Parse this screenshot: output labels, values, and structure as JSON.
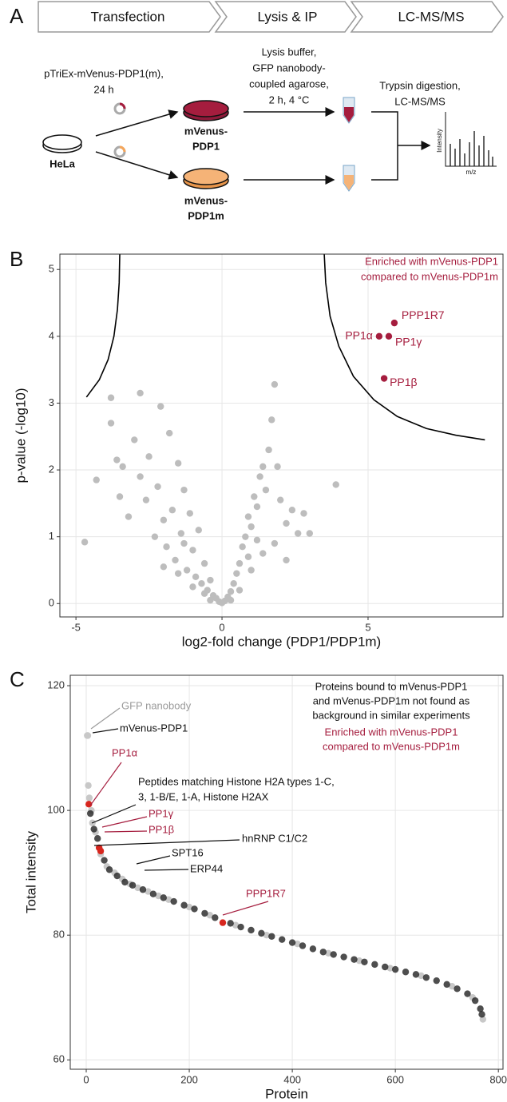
{
  "panel_labels": [
    "A",
    "B",
    "C"
  ],
  "workflow": {
    "steps": [
      "Transfection",
      "Lysis & IP",
      "LC-MS/MS"
    ],
    "transfection_note": [
      "pTriEx-mVenus-PDP1(m),",
      "24 h"
    ],
    "lysis_note": [
      "Lysis buffer,",
      "GFP nanobody-",
      "coupled agarose,",
      "2 h, 4 °C"
    ],
    "ms_note": [
      "Trypsin digestion,",
      "LC-MS/MS"
    ],
    "cell_line": "HeLa",
    "conditions": [
      [
        "mVenus-",
        "PDP1"
      ],
      [
        "mVenus-",
        "PDP1m"
      ]
    ],
    "spectrum": {
      "y_label": "Intensity",
      "x_label": "m/z"
    }
  },
  "chart_data": [
    {
      "type": "scatter",
      "x_label": "log2-fold change (PDP1/PDP1m)",
      "y_label": "p-value (-log10)",
      "xlim": [
        -5.55,
        9.62
      ],
      "ylim": [
        -0.2,
        5.23
      ],
      "xticks": [
        -5,
        0,
        5
      ],
      "yticks": [
        0,
        1,
        2,
        3,
        4,
        5
      ],
      "grid": true,
      "annotation": {
        "lines": [
          "Enriched with mVenus-PDP1",
          "compared to mVenus-PDP1m"
        ],
        "color": "#a51d3e"
      },
      "series": [
        {
          "color": "#bdbdbd",
          "x": [
            -4.7,
            -4.3,
            -3.8,
            -3.8,
            -3.6,
            -3.5,
            -3.4,
            -3.2,
            -3.0,
            -2.8,
            -2.8,
            -2.6,
            -2.5,
            -2.3,
            -2.2,
            -2.1,
            -2.0,
            -1.9,
            -1.8,
            -1.7,
            -1.6,
            -1.5,
            -1.4,
            -1.3,
            -1.2,
            -1.1,
            -1.0,
            -0.9,
            -0.8,
            -0.7,
            -0.6,
            -0.5,
            -0.4,
            -0.3,
            -0.2,
            -0.1,
            0,
            0.1,
            0.2,
            0.3,
            0.4,
            0.5,
            0.6,
            0.7,
            0.8,
            0.9,
            1.0,
            1.1,
            1.2,
            1.3,
            1.4,
            1.5,
            1.6,
            1.7,
            1.8,
            1.9,
            2.0,
            2.2,
            2.4,
            2.6,
            2.8,
            3.0,
            3.9,
            -1.5,
            -1.0,
            -0.6,
            0.6,
            1.0,
            1.4,
            1.8,
            -2.0,
            -1.3,
            0.9,
            1.2,
            2.2,
            -0.4,
            0.3
          ],
          "values": [
            0.92,
            1.85,
            3.08,
            2.7,
            2.15,
            1.6,
            2.05,
            1.3,
            2.45,
            3.15,
            1.9,
            1.55,
            2.2,
            1.0,
            1.75,
            2.95,
            1.25,
            0.85,
            2.55,
            1.4,
            0.65,
            2.1,
            1.05,
            1.7,
            0.5,
            1.35,
            0.8,
            0.4,
            1.1,
            0.3,
            0.6,
            0.2,
            0.35,
            0.12,
            0.08,
            0.03,
            0.01,
            0.04,
            0.1,
            0.18,
            0.3,
            0.45,
            0.6,
            0.85,
            1.0,
            1.3,
            1.15,
            1.6,
            1.45,
            1.9,
            2.05,
            1.7,
            2.3,
            2.75,
            3.28,
            2.05,
            1.55,
            1.2,
            1.4,
            1.05,
            1.35,
            1.05,
            1.78,
            0.45,
            0.25,
            0.15,
            0.2,
            0.5,
            0.75,
            0.9,
            0.55,
            0.9,
            0.7,
            0.95,
            0.65,
            0.05,
            0.05
          ]
        },
        {
          "color": "#a51d3e",
          "x": [
            5.9,
            5.38,
            5.71,
            5.55
          ],
          "values": [
            4.2,
            4.0,
            4.0,
            3.37
          ],
          "labels": [
            "PPP1R7",
            "PP1α",
            "PP1γ",
            "PP1β"
          ]
        }
      ],
      "threshold_curves": [
        {
          "color": "#000000",
          "x": [
            -4.64,
            -4.2,
            -3.9,
            -3.7,
            -3.58,
            -3.52,
            -3.5
          ],
          "y": [
            3.09,
            3.35,
            3.65,
            4.0,
            4.4,
            4.8,
            5.23
          ]
        },
        {
          "color": "#000000",
          "x": [
            3.5,
            3.55,
            3.7,
            4.0,
            4.5,
            5.2,
            6,
            7,
            8,
            9
          ],
          "y": [
            5.23,
            4.8,
            4.3,
            3.85,
            3.4,
            3.05,
            2.8,
            2.62,
            2.52,
            2.45
          ]
        }
      ]
    },
    {
      "type": "scatter",
      "x_label": "Protein",
      "y_label": "Total intensity",
      "xlim": [
        -31,
        809
      ],
      "ylim": [
        58.5,
        121.67
      ],
      "xticks": [
        0,
        200,
        400,
        600,
        800
      ],
      "yticks": [
        60,
        80,
        100,
        120
      ],
      "grid": true,
      "legend_text": {
        "bound": {
          "lines": [
            "Proteins bound to mVenus-PDP1",
            "and mVenus-PDP1m not found as",
            "background in similar experiments"
          ],
          "color": "#111111"
        },
        "enriched": {
          "lines": [
            "Enriched with mVenus-PDP1",
            "compared to mVenus-PDP1m"
          ],
          "color": "#a51d3e"
        }
      },
      "series": [
        {
          "color": "#c8c8c8",
          "x": [
            2,
            3,
            4,
            6,
            10,
            12,
            18,
            28,
            40,
            55,
            70,
            85,
            100,
            120,
            140,
            160,
            200,
            240,
            290,
            350,
            410,
            470,
            530,
            590,
            650,
            710,
            750,
            770
          ],
          "values": [
            112,
            112,
            104,
            102,
            100,
            98,
            96.5,
            93,
            91,
            90,
            89,
            88.2,
            87.6,
            87,
            86.3,
            85.7,
            84.5,
            83.2,
            81.6,
            80,
            78.6,
            77.1,
            75.9,
            74.7,
            73.5,
            71.8,
            70,
            66.5
          ]
        },
        {
          "color": "#222222",
          "x": [
            8,
            15,
            22,
            35,
            45,
            60,
            75,
            90,
            110,
            130,
            150,
            170,
            190,
            210,
            230,
            250,
            280,
            300,
            320,
            340,
            360,
            380,
            400,
            420,
            440,
            460,
            480,
            500,
            520,
            540,
            560,
            580,
            600,
            620,
            640,
            660,
            680,
            700,
            720,
            740,
            755,
            765,
            768
          ],
          "values": [
            99.5,
            97,
            95.5,
            92,
            90.5,
            89.5,
            88.5,
            88,
            87.3,
            86.6,
            86,
            85.4,
            84.8,
            84.2,
            83.5,
            82.8,
            81.9,
            81.3,
            80.8,
            80.3,
            79.8,
            79.3,
            78.8,
            78.3,
            77.8,
            77.3,
            76.9,
            76.5,
            76.1,
            75.7,
            75.3,
            74.9,
            74.5,
            74.1,
            73.7,
            73.2,
            72.7,
            72.1,
            71.4,
            70.6,
            69.5,
            68.2,
            67.3
          ]
        },
        {
          "color": "#d7261e",
          "x": [
            5,
            25,
            28,
            265
          ],
          "values": [
            101,
            94,
            93.5,
            82
          ]
        }
      ],
      "annotations": [
        {
          "lines": [
            "GFP nanobody"
          ],
          "color": "#9a9a9a"
        },
        {
          "lines": [
            "mVenus-PDP1"
          ],
          "color": "#111111"
        },
        {
          "lines": [
            "PP1α"
          ],
          "color": "#a51d3e"
        },
        {
          "lines": [
            "Peptides matching Histone H2A types 1-C,",
            "3, 1-B/E, 1-A, Histone H2AX"
          ],
          "color": "#111111"
        },
        {
          "lines": [
            "PP1γ"
          ],
          "color": "#a51d3e"
        },
        {
          "lines": [
            "PP1β"
          ],
          "color": "#a51d3e"
        },
        {
          "lines": [
            "hnRNP C1/C2"
          ],
          "color": "#111111"
        },
        {
          "lines": [
            "SPT16"
          ],
          "color": "#111111"
        },
        {
          "lines": [
            "ERP44"
          ],
          "color": "#111111"
        },
        {
          "lines": [
            "PPP1R7"
          ],
          "color": "#a51d3e"
        }
      ]
    }
  ]
}
